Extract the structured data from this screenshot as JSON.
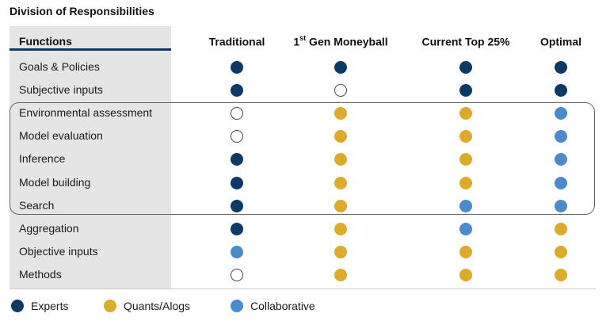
{
  "title": "Division of Responsibilities",
  "chart_data": {
    "type": "table",
    "row_header": "Functions",
    "columns": [
      {
        "pre": "",
        "sup": "",
        "post": "Traditional"
      },
      {
        "pre": "1",
        "sup": "st",
        "post": " Gen Moneyball"
      },
      {
        "pre": "",
        "sup": "",
        "post": "Current Top 25%"
      },
      {
        "pre": "",
        "sup": "",
        "post": "Optimal"
      }
    ],
    "rows": [
      {
        "label": "Goals & Policies",
        "cells": [
          "experts",
          "experts",
          "experts",
          "experts"
        ]
      },
      {
        "label": "Subjective inputs",
        "cells": [
          "experts",
          "none",
          "experts",
          "experts"
        ]
      },
      {
        "label": "Environmental assessment",
        "cells": [
          "none",
          "quants",
          "quants",
          "collab"
        ]
      },
      {
        "label": "Model evaluation",
        "cells": [
          "none",
          "quants",
          "quants",
          "collab"
        ]
      },
      {
        "label": "Inference",
        "cells": [
          "experts",
          "quants",
          "quants",
          "collab"
        ]
      },
      {
        "label": "Model building",
        "cells": [
          "experts",
          "quants",
          "quants",
          "collab"
        ]
      },
      {
        "label": "Search",
        "cells": [
          "experts",
          "quants",
          "collab",
          "collab"
        ]
      },
      {
        "label": "Aggregation",
        "cells": [
          "experts",
          "quants",
          "collab",
          "quants"
        ]
      },
      {
        "label": "Objective inputs",
        "cells": [
          "collab",
          "quants",
          "quants",
          "quants"
        ]
      },
      {
        "label": "Methods",
        "cells": [
          "none",
          "quants",
          "quants",
          "quants"
        ]
      }
    ],
    "highlighted_rows": [
      "Environmental assessment",
      "Model evaluation",
      "Inference",
      "Model building",
      "Search"
    ],
    "legend": [
      {
        "key": "experts",
        "label": "Experts",
        "color": "#0c3a66"
      },
      {
        "key": "quants",
        "label": "Quants/Alogs",
        "color": "#ddaa2b"
      },
      {
        "key": "collab",
        "label": "Collaborative",
        "color": "#4a8ccb"
      }
    ],
    "empty_marker": "none"
  }
}
